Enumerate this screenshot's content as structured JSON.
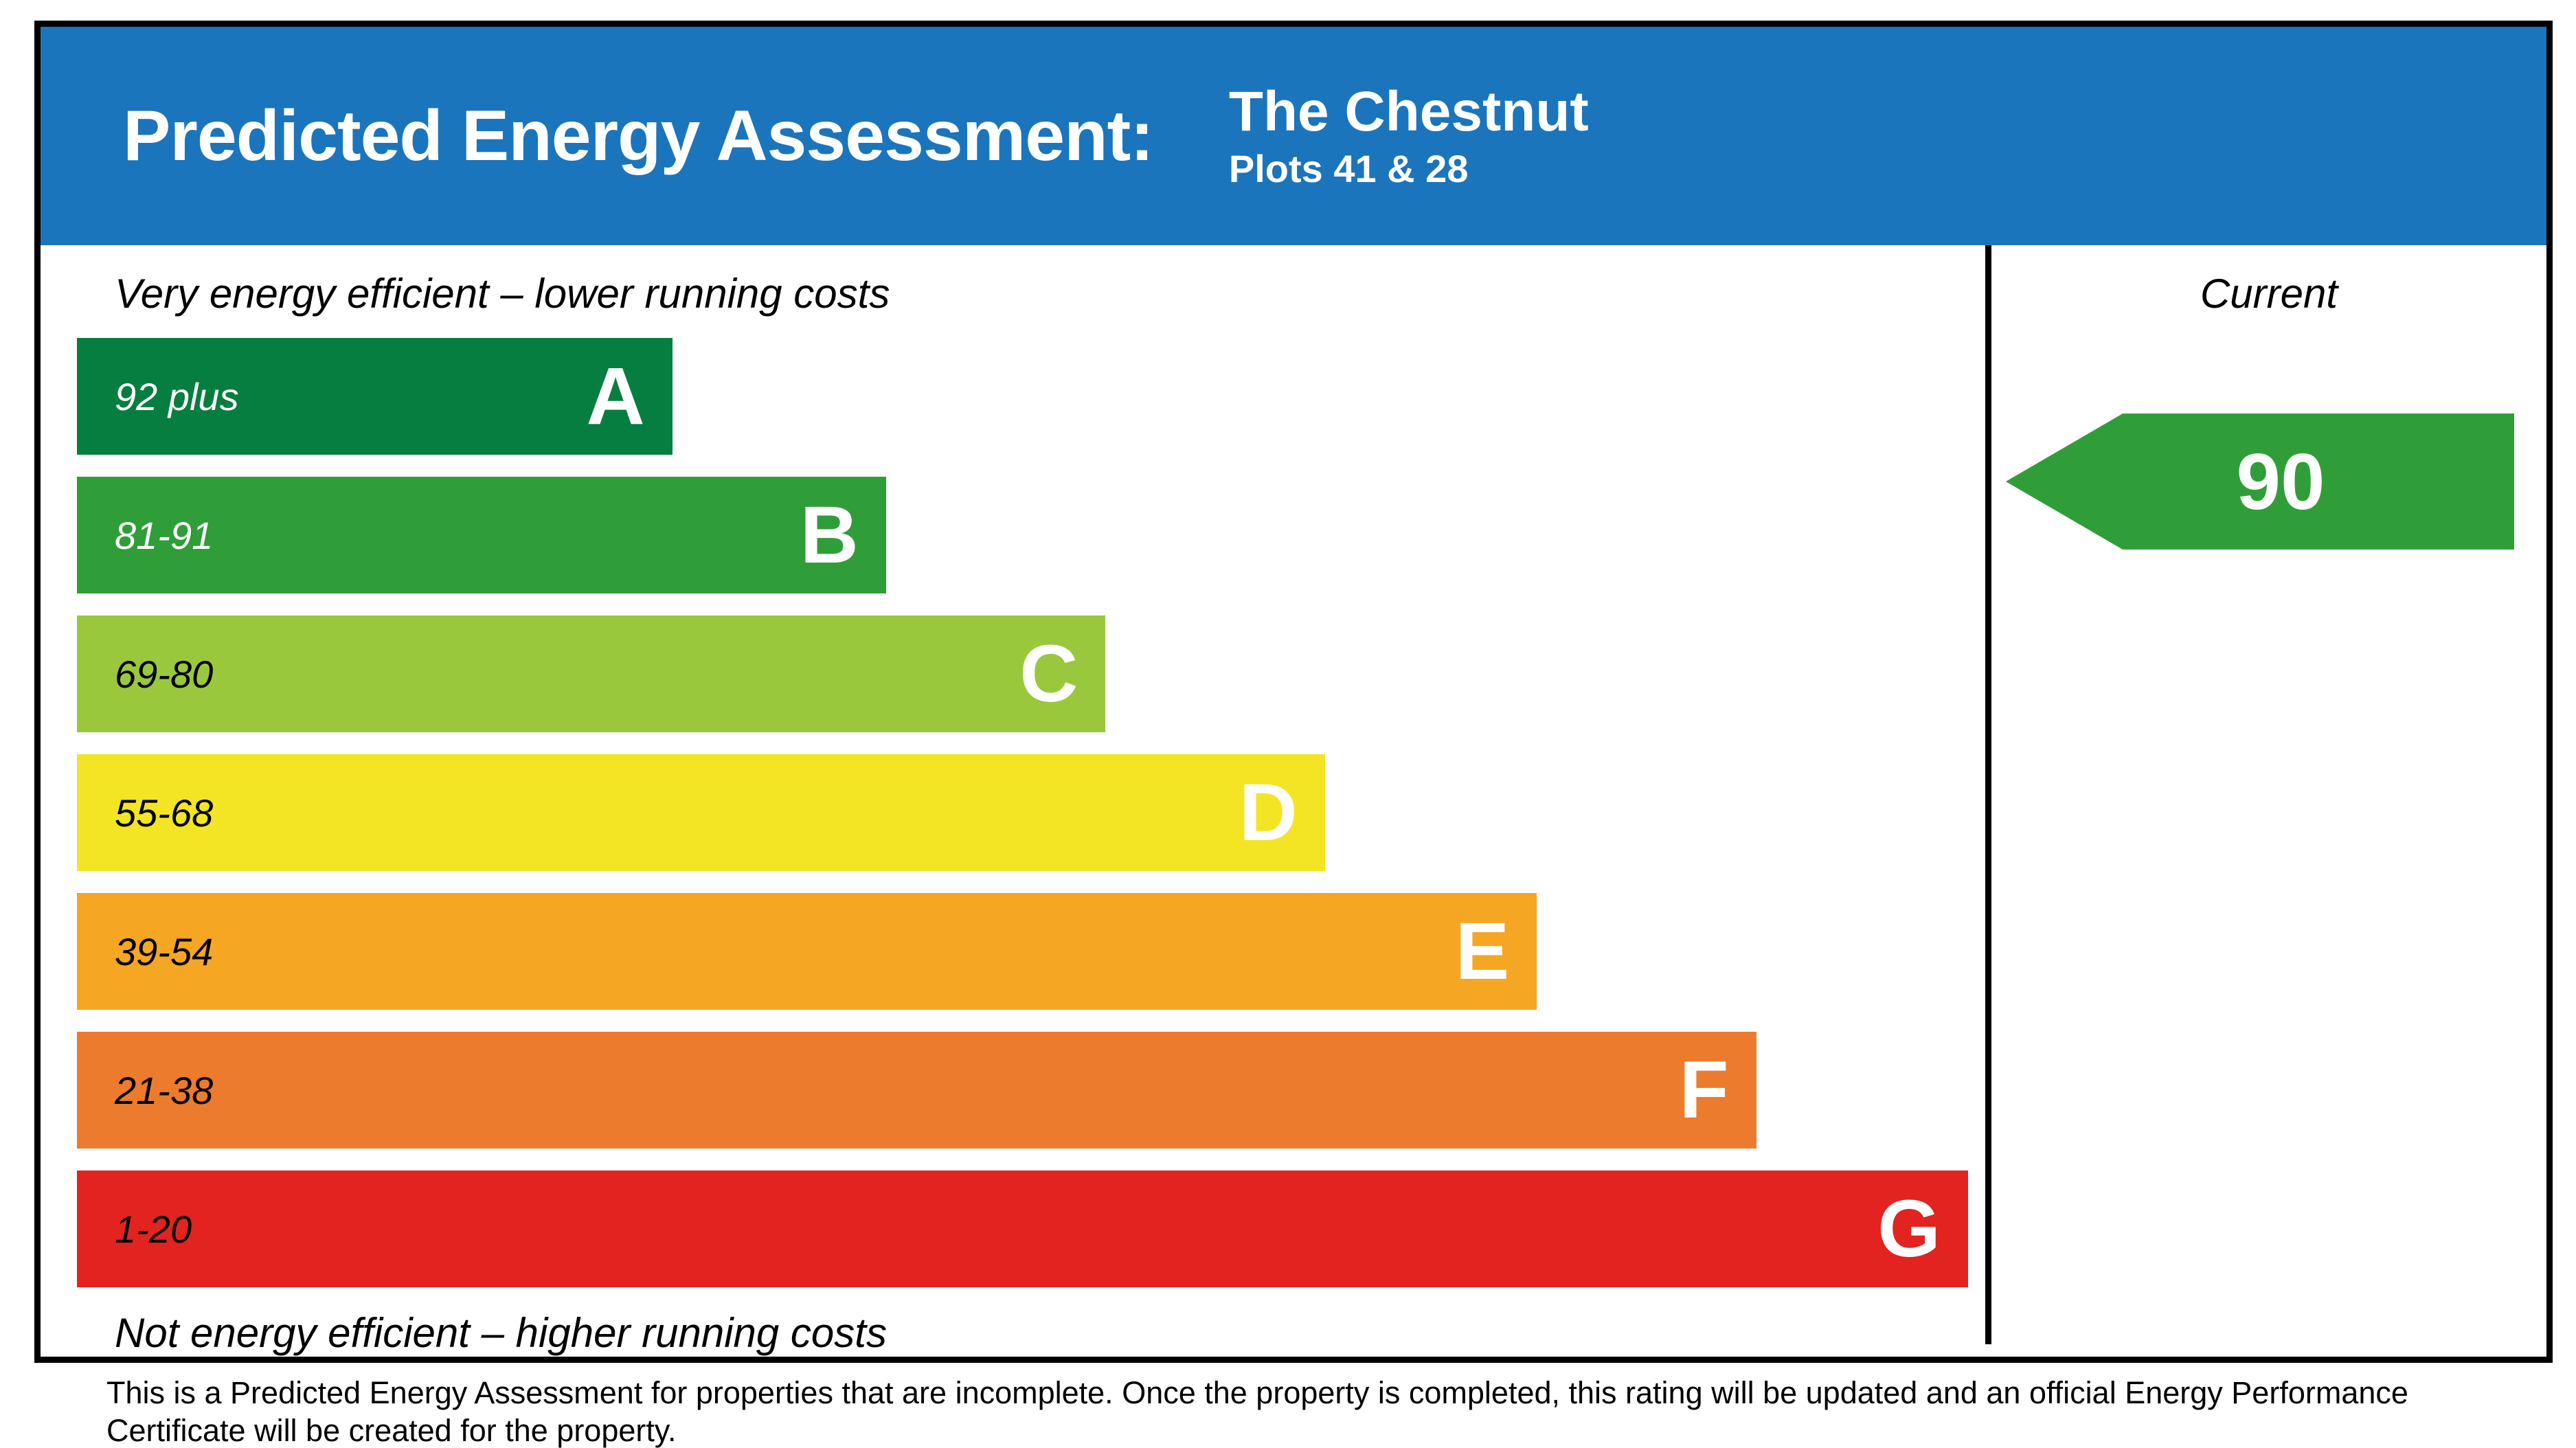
{
  "header": {
    "title": "Predicted Energy Assessment:",
    "property_name": "The Chestnut",
    "plots": "Plots 41 & 28",
    "background": "#1b75bc"
  },
  "chart_data": {
    "type": "bar",
    "title": "Predicted Energy Assessment",
    "top_caption": "Very energy efficient – lower running costs",
    "bottom_caption": "Not energy efficient – higher running costs",
    "current_column_label": "Current",
    "current_rating": {
      "value": "90",
      "band": "B",
      "color": "#2f9e38",
      "text_color": "#ffffff"
    },
    "bands": [
      {
        "letter": "A",
        "range": "92 plus",
        "color": "#067e40",
        "range_text_color": "#ffffff",
        "width_pct": 31.2
      },
      {
        "letter": "B",
        "range": "81-91",
        "color": "#2f9e38",
        "range_text_color": "#ffffff",
        "width_pct": 42.4
      },
      {
        "letter": "C",
        "range": "69-80",
        "color": "#9ac83d",
        "range_text_color": "#000000",
        "width_pct": 53.9
      },
      {
        "letter": "D",
        "range": "55-68",
        "color": "#f3e524",
        "range_text_color": "#000000",
        "width_pct": 65.4
      },
      {
        "letter": "E",
        "range": "39-54",
        "color": "#f5a623",
        "range_text_color": "#000000",
        "width_pct": 76.5
      },
      {
        "letter": "F",
        "range": "21-38",
        "color": "#ed7b2d",
        "range_text_color": "#000000",
        "width_pct": 88.0
      },
      {
        "letter": "G",
        "range": "1-20",
        "color": "#e2231f",
        "range_text_color": "#000000",
        "width_pct": 99.1
      }
    ],
    "axis_note": "bar width proportional to EPC band position, A narrowest to G widest"
  },
  "footer": {
    "disclaimer": "This is a Predicted Energy Assessment for properties that are incomplete. Once the property is completed, this rating will be updated and an official Energy Performance Certificate will be created for the property."
  }
}
